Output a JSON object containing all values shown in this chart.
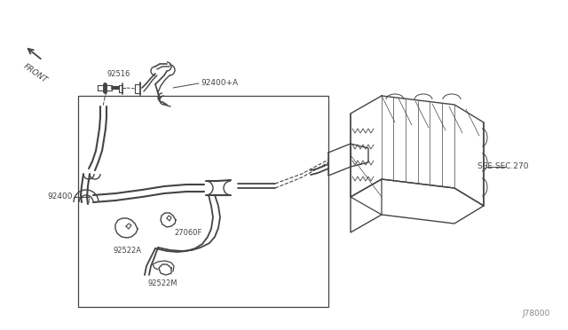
{
  "background_color": "#ffffff",
  "fig_width": 6.4,
  "fig_height": 3.72,
  "dpi": 100,
  "labels": {
    "front": "FRONT",
    "92516": "92516",
    "92400_a": "92400+A",
    "92400": "92400",
    "27060f": "27060F",
    "92522a": "92522A",
    "92522m": "92522M",
    "see_sec": "SEE SEC.270",
    "part_num": "J78000"
  },
  "line_color": "#444444",
  "line_width": 1.0
}
